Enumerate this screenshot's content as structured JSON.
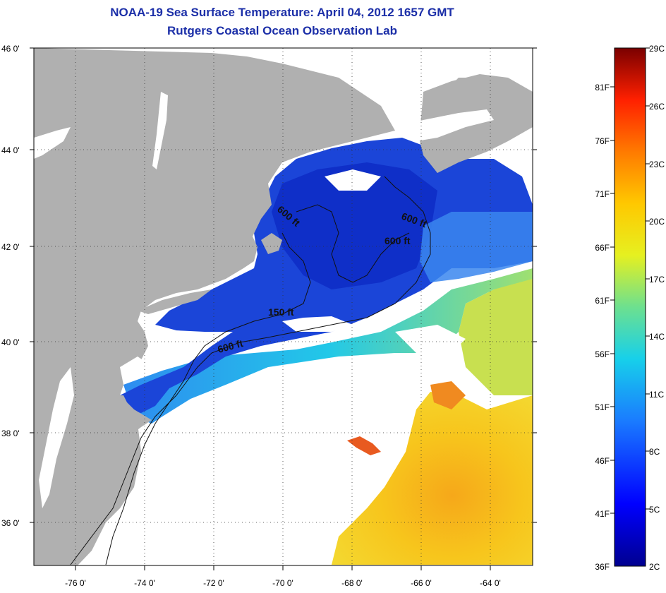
{
  "header": {
    "title": "NOAA-19 Sea Surface Temperature:  April 04, 2012 1657 GMT",
    "subtitle": "Rutgers Coastal Ocean Observation Lab"
  },
  "map": {
    "lat_labels": [
      "46 0'",
      "44 0'",
      "42 0'",
      "40 0'",
      "38 0'",
      "36 0'"
    ],
    "lon_labels": [
      "-76 0'",
      "-74 0'",
      "-72 0'",
      "-70 0'",
      "-68 0'",
      "-66 0'",
      "-64 0'"
    ],
    "lat_range": [
      35,
      46
    ],
    "lon_range": [
      -77,
      -62.5
    ],
    "contour_labels": [
      "600 ft",
      "600 ft",
      "600 ft",
      "150 ft",
      "600 ft"
    ],
    "colors": {
      "land": "#b0b0b0",
      "cloud": "#ffffff",
      "cold": "#1a3fd6",
      "warm": "#f5c21a"
    }
  },
  "colorbar": {
    "celsius": [
      "29C",
      "26C",
      "23C",
      "20C",
      "17C",
      "14C",
      "11C",
      "8C",
      "5C",
      "2C"
    ],
    "fahrenheit": [
      "81F",
      "76F",
      "71F",
      "66F",
      "61F",
      "56F",
      "51F",
      "46F",
      "41F",
      "36F"
    ],
    "range_c": [
      2,
      29
    ]
  }
}
